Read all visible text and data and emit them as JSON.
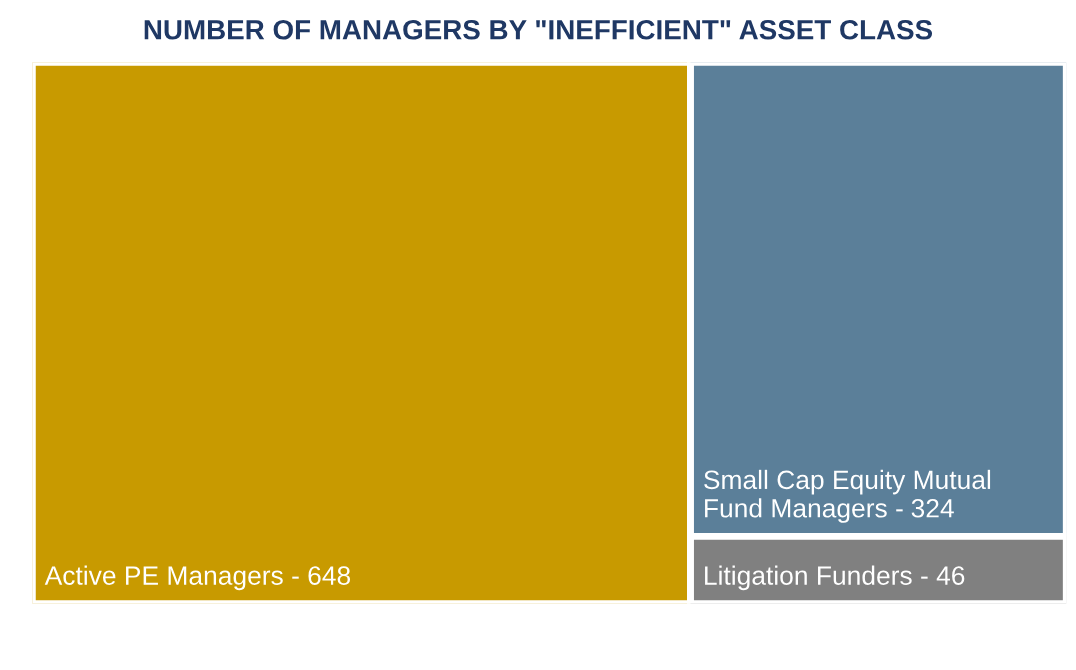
{
  "chart_data": {
    "type": "other",
    "title": "NUMBER OF MANAGERS BY \"INEFFICIENT\" ASSET CLASS",
    "categories": [
      "Active PE Managers -",
      "Small Cap Equity Mutual\nFund Managers -",
      "Litigation Funders -"
    ],
    "values": [
      648,
      324,
      46
    ],
    "data_labels": true,
    "colors": [
      "#c89a00",
      "#5b7f99",
      "#808080"
    ]
  }
}
